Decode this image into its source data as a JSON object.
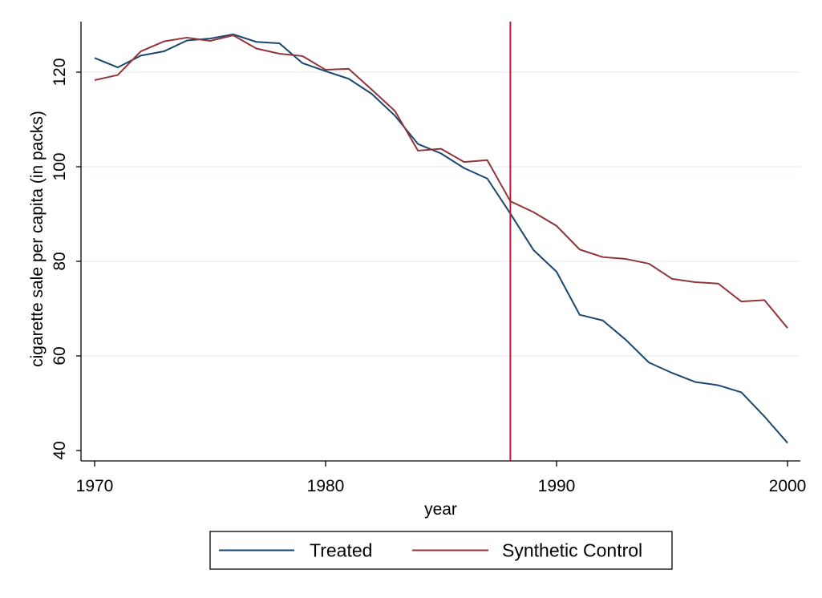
{
  "chart_data": {
    "type": "line",
    "title": "",
    "xlabel": "year",
    "ylabel": "cigarette sale per capita (in packs)",
    "xlim": [
      1970,
      2000
    ],
    "ylim": [
      40,
      130
    ],
    "xticks": [
      1970,
      1980,
      1990,
      2000
    ],
    "yticks": [
      40,
      60,
      80,
      100,
      120
    ],
    "x_tick_labels": [
      "1970",
      "1980",
      "1990",
      "2000"
    ],
    "y_tick_labels": [
      "40",
      "60",
      "80",
      "100",
      "120"
    ],
    "grid": true,
    "legend_position": "bottom",
    "reference_line": {
      "x": 1988,
      "color": "#b01c3a"
    },
    "x": [
      1970,
      1971,
      1972,
      1973,
      1974,
      1975,
      1976,
      1977,
      1978,
      1979,
      1980,
      1981,
      1982,
      1983,
      1984,
      1985,
      1986,
      1987,
      1988,
      1989,
      1990,
      1991,
      1992,
      1993,
      1994,
      1995,
      1996,
      1997,
      1998,
      1999,
      2000
    ],
    "series": [
      {
        "name": "Treated",
        "color": "#1a476f",
        "values": [
          123.0,
          121.0,
          123.5,
          124.4,
          126.7,
          127.1,
          128.0,
          126.4,
          126.1,
          121.9,
          120.2,
          118.6,
          115.4,
          110.8,
          104.8,
          102.8,
          99.7,
          97.5,
          90.1,
          82.4,
          77.8,
          68.7,
          67.5,
          63.4,
          58.6,
          56.4,
          54.5,
          53.8,
          52.3,
          47.2,
          41.6
        ]
      },
      {
        "name": "Synthetic Control",
        "color": "#90353b",
        "values": [
          118.3,
          119.4,
          124.4,
          126.5,
          127.3,
          126.6,
          127.8,
          125.0,
          123.9,
          123.4,
          120.5,
          120.7,
          116.3,
          111.8,
          103.4,
          103.8,
          101.0,
          101.4,
          92.7,
          90.4,
          87.5,
          82.5,
          80.9,
          80.5,
          79.5,
          76.3,
          75.6,
          75.3,
          71.5,
          71.8,
          65.9
        ]
      }
    ]
  }
}
